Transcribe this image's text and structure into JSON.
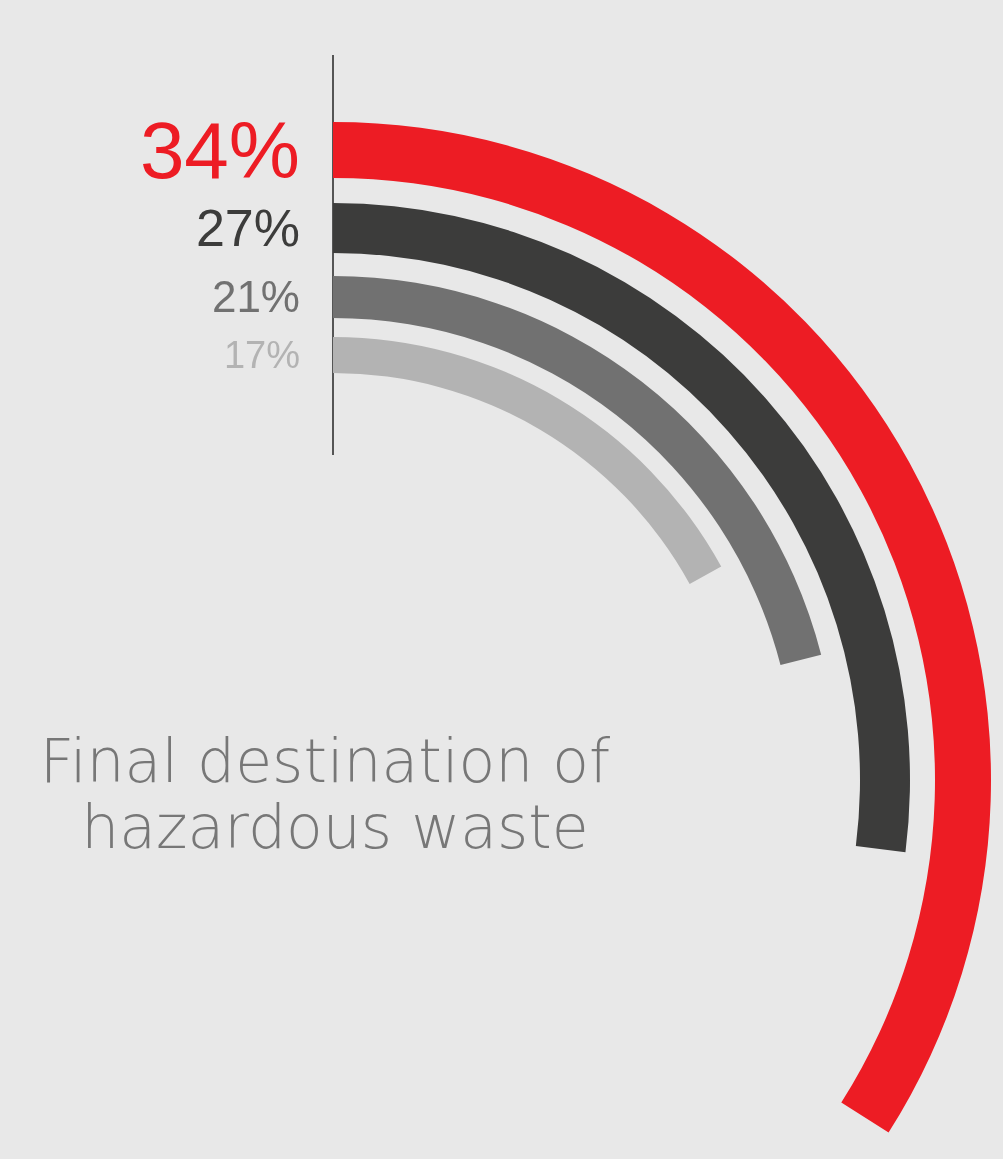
{
  "chart_data": {
    "type": "other",
    "title": "Final destination of hazardous waste",
    "categories": [
      null,
      null,
      null,
      null
    ],
    "values": [
      34,
      27,
      21,
      17
    ],
    "value_labels": [
      "34%",
      "27%",
      "21%",
      "17%"
    ],
    "colors": [
      "#ed1c24",
      "#3c3c3b",
      "#717171",
      "#b3b3b3"
    ]
  }
}
